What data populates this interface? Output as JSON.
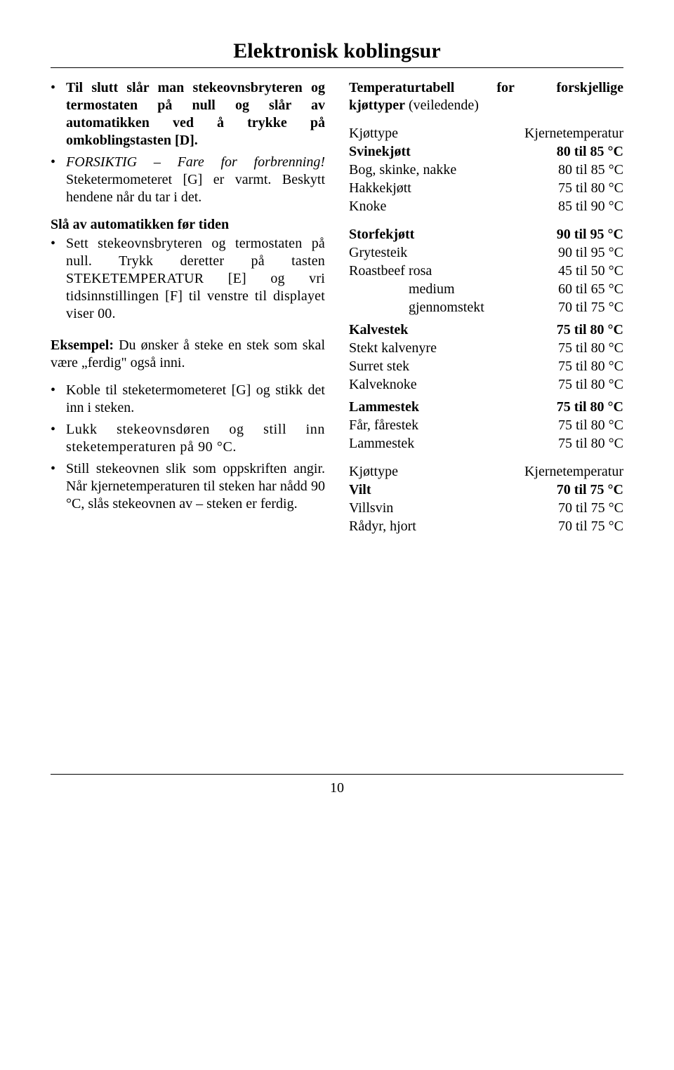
{
  "title": "Elektronisk koblingsur",
  "left": {
    "b1": "Til slutt slår man stekeovnsbryteren og termostaten på null og slår av automatikken ved å trykke på omkoblingstasten [D].",
    "b2a": "FORSIKTIG – Fare for forbrenning!",
    "b2b": " Steketermometeret [G] er varmt. Beskytt hendene når du tar i det.",
    "sub": "Slå av automatikken før tiden",
    "s1": "Sett stekeovnsbryteren og termostaten på null. Trykk deretter på tasten STEKETEMPERATUR [E] og vri tidsinnstillingen [F] til venstre til displayet viser 00.",
    "exA": "Eksempel:",
    "exB": " Du ønsker å steke en stek som skal være „ferdig\" også inni.",
    "b3": "Koble til steketermometeret [G] og stikk det inn i steken.",
    "b4": "Lukk stekeovnsdøren og still inn steketemperaturen på 90 °C.",
    "b5": "Still stekeovnen slik som oppskriften angir. Når kjernetemperaturen til steken har nådd 90 °C, slås stekeovnen av – steken er ferdig."
  },
  "right": {
    "heading_line": "Temperaturtabell for forskjellige",
    "heading_sub1": "kjøttyper",
    "heading_sub2": " (veiledende)",
    "hdr_l": "Kjøttype",
    "hdr_r": "Kjernetemperatur",
    "pork_h": "Svinekjøtt",
    "pork_h_r": "80 til 85 °C",
    "p1l": "Bog, skinke, nakke",
    "p1r": "80 til 85 °C",
    "p2l": "Hakkekjøtt",
    "p2r": "75 til 80 °C",
    "p3l": "Knoke",
    "p3r": "85 til 90 °C",
    "beef_h": "Storfekjøtt",
    "beef_h_r": "90 til 95 °C",
    "b1l": "Grytesteik",
    "b1r": "90 til 95 °C",
    "b2l": "Roastbeef  rosa",
    "b2r": "45 til 50 °C",
    "b3l": "medium",
    "b3r": "60 til 65 °C",
    "b3pad": "Roastbeef  ",
    "b4l": "gjennomstekt",
    "b4r": "70 til 75 °C",
    "veal_h": "Kalvestek",
    "veal_h_r": "75 til 80 °C",
    "v1l": "Stekt kalvenyre",
    "v1r": "75 til 80 °C",
    "v2l": "Surret stek",
    "v2r": "75 til 80 °C",
    "v3l": "Kalveknoke",
    "v3r": "75 til 80 °C",
    "lamb_h": "Lammestek",
    "lamb_h_r": "75 til 80 °C",
    "l1l": "Får, fårestek",
    "l1r": "75 til 80 °C",
    "l2l": "Lammestek",
    "l2r": "75 til 80 °C",
    "hdr2_l": "Kjøttype",
    "hdr2_r": "Kjernetemperatur",
    "game_h": "Vilt",
    "game_h_r": "70 til 75 °C",
    "g1l": "Villsvin",
    "g1r": "70 til 75 °C",
    "g2l": "Rådyr, hjort",
    "g2r": "70 til 75 °C"
  },
  "pagenum": "10"
}
